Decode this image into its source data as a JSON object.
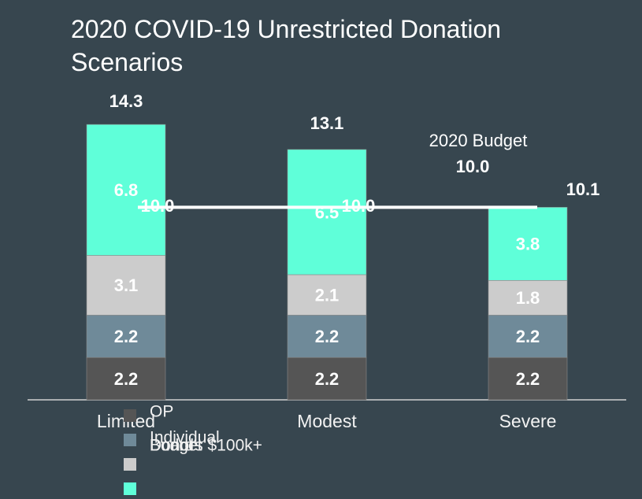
{
  "chart_data": {
    "type": "stacked_bar",
    "title": "2020 COVID-19 Unrestricted Donation Scenarios",
    "categories": [
      "Limited",
      "Modest",
      "Severe"
    ],
    "series": [
      {
        "name": "OP",
        "color": "#555555",
        "values": [
          2.2,
          2.2,
          2.2
        ]
      },
      {
        "name": "Individual",
        "color": "#6f8a99",
        "values": [
          2.2,
          2.2,
          2.2
        ]
      },
      {
        "name": "Board",
        "color": "#cccccc",
        "values": [
          3.1,
          2.1,
          1.8
        ]
      },
      {
        "name": "Donors $100k+",
        "color": "#5fffd9",
        "values": [
          6.8,
          6.5,
          3.8
        ]
      }
    ],
    "totals": [
      14.3,
      13.1,
      10.1
    ],
    "budget": {
      "name": "Budget",
      "color": "#ffffff",
      "values": [
        10,
        10,
        10
      ],
      "value_labels": [
        "10.0",
        "10.0",
        "10.0"
      ]
    },
    "annotation": "2020 Budget",
    "ylim": [
      0,
      15
    ]
  }
}
